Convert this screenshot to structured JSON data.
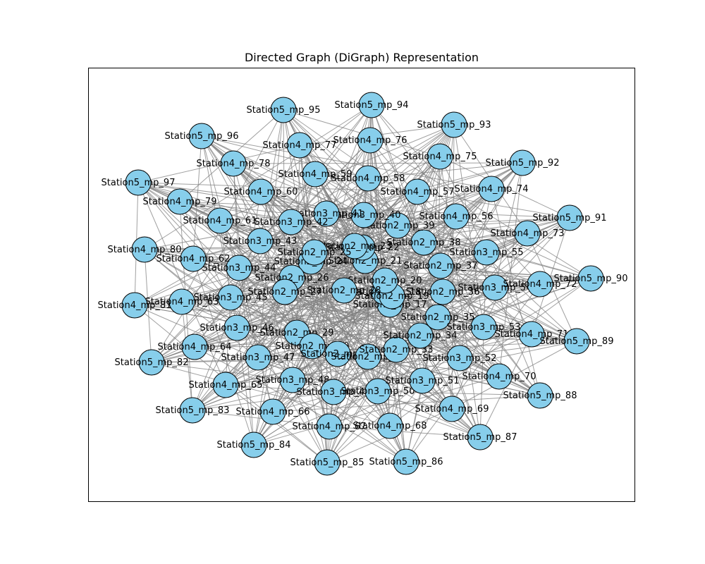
{
  "title": "Directed Graph (DiGraph) Representation",
  "style": {
    "node_fill": "#87ceeb",
    "node_stroke": "#000000",
    "edge_color": "#808080",
    "frame_color": "#000000"
  },
  "graph": {
    "directed": true,
    "nodes": [
      "Station2_mp_17",
      "Station2_mp_18",
      "Station2_mp_19",
      "Station2_mp_20",
      "Station2_mp_21",
      "Station2_mp_22",
      "Station2_mp_23",
      "Station2_mp_24",
      "Station2_mp_25",
      "Station2_mp_26",
      "Station2_mp_27",
      "Station2_mp_28",
      "Station2_mp_29",
      "Station2_mp_30",
      "Station2_mp_31",
      "Station2_mp_32",
      "Station2_mp_33",
      "Station2_mp_34",
      "Station2_mp_35",
      "Station2_mp_36",
      "Station2_mp_37",
      "Station2_mp_38",
      "Station2_mp_39",
      "Station3_mp_40",
      "Station3_mp_41",
      "Station3_mp_42",
      "Station3_mp_43",
      "Station3_mp_44",
      "Station3_mp_45",
      "Station3_mp_46",
      "Station3_mp_47",
      "Station3_mp_48",
      "Station3_mp_49",
      "Station3_mp_50",
      "Station3_mp_51",
      "Station3_mp_52",
      "Station3_mp_53",
      "Station3_mp_54",
      "Station3_mp_55",
      "Station4_mp_56",
      "Station4_mp_57",
      "Station4_mp_58",
      "Station4_mp_59",
      "Station4_mp_60",
      "Station4_mp_61",
      "Station4_mp_62",
      "Station4_mp_63",
      "Station4_mp_64",
      "Station4_mp_65",
      "Station4_mp_66",
      "Station4_mp_67",
      "Station4_mp_68",
      "Station4_mp_69",
      "Station4_mp_70",
      "Station4_mp_71",
      "Station4_mp_72",
      "Station4_mp_73",
      "Station4_mp_74",
      "Station4_mp_75",
      "Station4_mp_76",
      "Station4_mp_77",
      "Station4_mp_78",
      "Station4_mp_79",
      "Station4_mp_80",
      "Station4_mp_81",
      "Station5_mp_82",
      "Station5_mp_83",
      "Station5_mp_84",
      "Station5_mp_85",
      "Station5_mp_86",
      "Station5_mp_87",
      "Station5_mp_88",
      "Station5_mp_89",
      "Station5_mp_90",
      "Station5_mp_91",
      "Station5_mp_92",
      "Station5_mp_93",
      "Station5_mp_94",
      "Station5_mp_95",
      "Station5_mp_96",
      "Station5_mp_97"
    ]
  }
}
